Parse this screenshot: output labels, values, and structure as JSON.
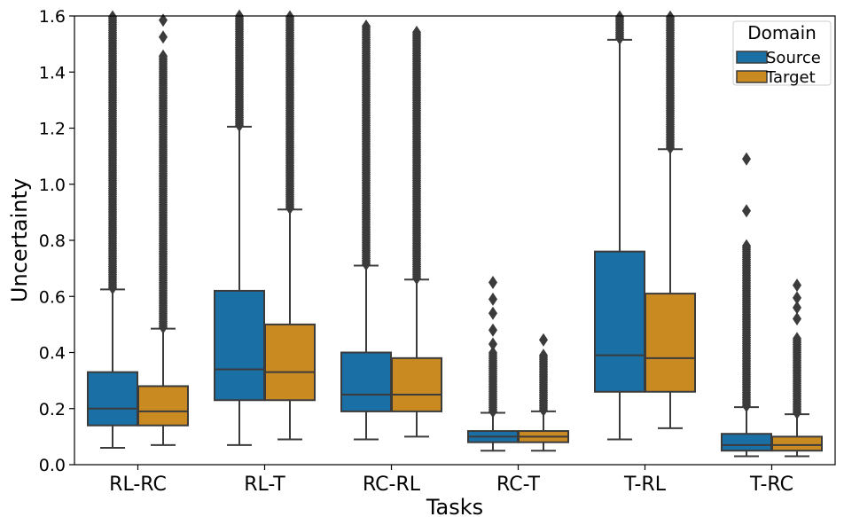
{
  "chart_data": {
    "type": "box",
    "xlabel": "Tasks",
    "ylabel": "Uncertainty",
    "ylim": [
      0,
      1.6
    ],
    "yticks": [
      "0.0",
      "0.2",
      "0.4",
      "0.6",
      "0.8",
      "1.0",
      "1.2",
      "1.4",
      "1.6"
    ],
    "grid": false,
    "categories": [
      "RL-RC",
      "RL-T",
      "RC-RL",
      "RC-T",
      "T-RL",
      "T-RC"
    ],
    "legend": {
      "title": "Domain",
      "placement": "top-right",
      "entries": [
        "Source",
        "Target"
      ]
    },
    "colors": {
      "Source": "#1a6fa5",
      "Target": "#c98a21",
      "line": "#3b3b3b"
    },
    "series": [
      {
        "name": "Source",
        "boxes": [
          {
            "whislo": 0.06,
            "q1": 0.14,
            "med": 0.2,
            "q3": 0.33,
            "whishi": 0.625,
            "fliers_from": 0.63,
            "fliers_to": 1.6,
            "extra_fliers": []
          },
          {
            "whislo": 0.07,
            "q1": 0.23,
            "med": 0.34,
            "q3": 0.62,
            "whishi": 1.205,
            "fliers_from": 1.21,
            "fliers_to": 1.6,
            "extra_fliers": []
          },
          {
            "whislo": 0.09,
            "q1": 0.19,
            "med": 0.25,
            "q3": 0.4,
            "whishi": 0.71,
            "fliers_from": 0.715,
            "fliers_to": 1.565,
            "extra_fliers": []
          },
          {
            "whislo": 0.05,
            "q1": 0.08,
            "med": 0.1,
            "q3": 0.12,
            "whishi": 0.185,
            "fliers_from": 0.19,
            "fliers_to": 0.4,
            "extra_fliers": [
              0.43,
              0.48,
              0.54,
              0.59,
              0.65
            ]
          },
          {
            "whislo": 0.09,
            "q1": 0.26,
            "med": 0.39,
            "q3": 0.76,
            "whishi": 1.515,
            "fliers_from": 1.52,
            "fliers_to": 1.6,
            "extra_fliers": []
          },
          {
            "whislo": 0.03,
            "q1": 0.05,
            "med": 0.07,
            "q3": 0.11,
            "whishi": 0.205,
            "fliers_from": 0.21,
            "fliers_to": 0.78,
            "extra_fliers": [
              0.905,
              1.09
            ]
          }
        ]
      },
      {
        "name": "Target",
        "boxes": [
          {
            "whislo": 0.07,
            "q1": 0.14,
            "med": 0.19,
            "q3": 0.28,
            "whishi": 0.485,
            "fliers_from": 0.49,
            "fliers_to": 1.46,
            "extra_fliers": [
              1.525,
              1.585
            ]
          },
          {
            "whislo": 0.09,
            "q1": 0.23,
            "med": 0.33,
            "q3": 0.5,
            "whishi": 0.91,
            "fliers_from": 0.915,
            "fliers_to": 1.6,
            "extra_fliers": []
          },
          {
            "whislo": 0.1,
            "q1": 0.19,
            "med": 0.25,
            "q3": 0.38,
            "whishi": 0.66,
            "fliers_from": 0.665,
            "fliers_to": 1.545,
            "extra_fliers": []
          },
          {
            "whislo": 0.05,
            "q1": 0.08,
            "med": 0.1,
            "q3": 0.12,
            "whishi": 0.19,
            "fliers_from": 0.195,
            "fliers_to": 0.39,
            "extra_fliers": [
              0.445
            ]
          },
          {
            "whislo": 0.13,
            "q1": 0.26,
            "med": 0.38,
            "q3": 0.61,
            "whishi": 1.125,
            "fliers_from": 1.13,
            "fliers_to": 1.6,
            "extra_fliers": []
          },
          {
            "whislo": 0.03,
            "q1": 0.05,
            "med": 0.07,
            "q3": 0.1,
            "whishi": 0.18,
            "fliers_from": 0.185,
            "fliers_to": 0.45,
            "extra_fliers": [
              0.52,
              0.56,
              0.595,
              0.64
            ]
          }
        ]
      }
    ]
  }
}
